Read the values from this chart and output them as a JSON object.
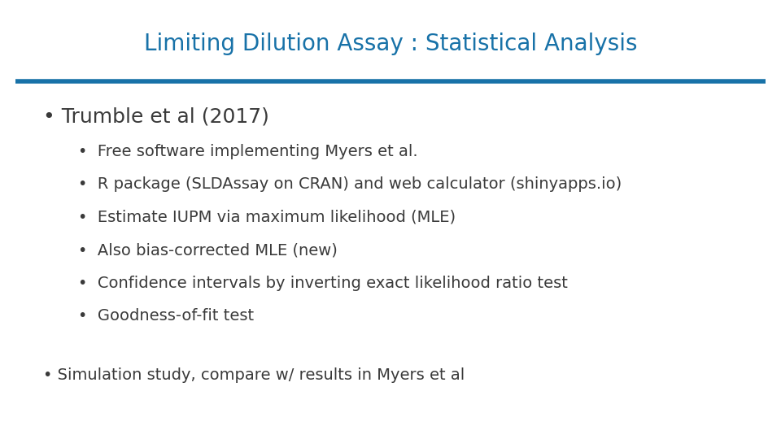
{
  "title": "Limiting Dilution Assay : Statistical Analysis",
  "title_color": "#1872a8",
  "title_fontsize": 20,
  "title_fontweight": "normal",
  "line_color": "#1872a8",
  "bg_color": "#ffffff",
  "text_color": "#3a3a3a",
  "bullet1_text": "Trumble et al (2017)",
  "bullet1_fontsize": 18,
  "sub_bullets": [
    "Free software implementing Myers et al.",
    "R package (SLDAssay on CRAN) and web calculator (shinyapps.io)",
    "Estimate IUPM via maximum likelihood (MLE)",
    "Also bias-corrected MLE (new)",
    "Confidence intervals by inverting exact likelihood ratio test",
    "Goodness-of-fit test"
  ],
  "sub_bullet_fontsize": 14,
  "bullet2_text": "Simulation study, compare w/ results in Myers et al",
  "bullet2_fontsize": 14
}
